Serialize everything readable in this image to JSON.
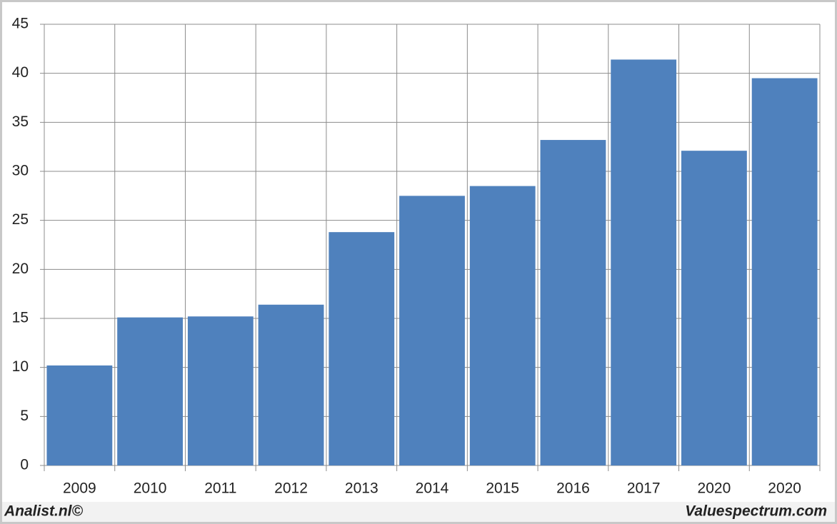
{
  "chart_data": {
    "type": "bar",
    "categories": [
      "2009",
      "2010",
      "2011",
      "2012",
      "2013",
      "2014",
      "2015",
      "2016",
      "2017",
      "2020",
      "2020"
    ],
    "values": [
      10.2,
      15.1,
      15.2,
      16.4,
      23.8,
      27.5,
      28.5,
      33.2,
      41.4,
      32.1,
      39.5
    ],
    "color": "#4f81bd",
    "ylim": [
      0,
      45
    ],
    "yticks": [
      0,
      5,
      10,
      15,
      20,
      25,
      30,
      35,
      40,
      45
    ],
    "grid": true,
    "source_left": "Analist.nl©",
    "source_right": "Valuespectrum.com"
  }
}
